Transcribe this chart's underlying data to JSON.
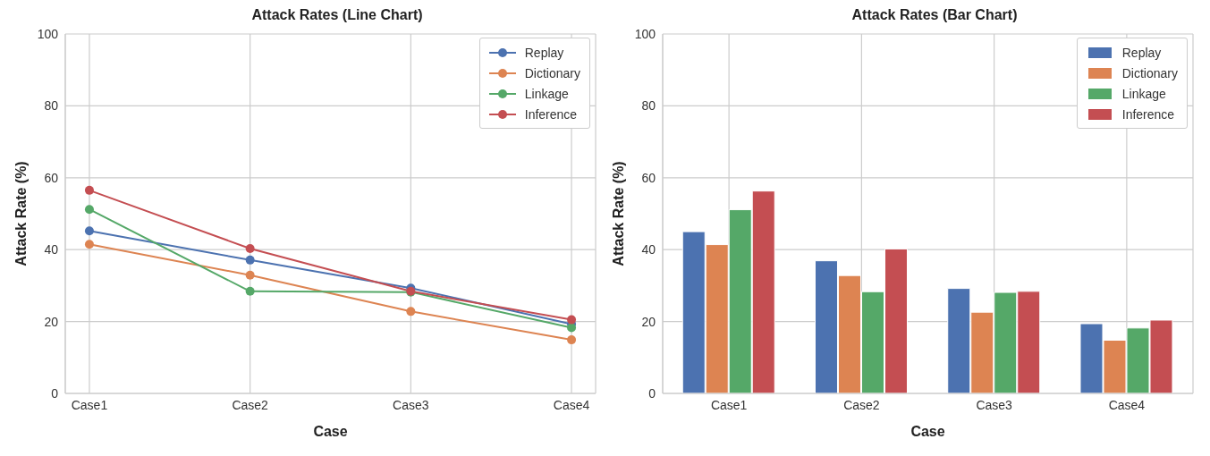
{
  "chart_data": [
    {
      "type": "line",
      "title": "Attack Rates (Line Chart)",
      "xlabel": "Case",
      "ylabel": "Attack Rate (%)",
      "categories": [
        "Case1",
        "Case2",
        "Case3",
        "Case4"
      ],
      "series": [
        {
          "name": "Replay",
          "color": "#4c72b0",
          "values": [
            45.2,
            37.1,
            29.3,
            19.3
          ]
        },
        {
          "name": "Dictionary",
          "color": "#dd8452",
          "values": [
            41.5,
            32.9,
            22.8,
            14.9
          ]
        },
        {
          "name": "Linkage",
          "color": "#55a868",
          "values": [
            51.2,
            28.4,
            28.2,
            18.3
          ]
        },
        {
          "name": "Inference",
          "color": "#c44e52",
          "values": [
            56.5,
            40.3,
            28.4,
            20.5
          ]
        }
      ],
      "ylim": [
        0,
        100
      ],
      "yticks": [
        0,
        20,
        40,
        60,
        80,
        100
      ],
      "grid": true,
      "legend": "top right",
      "marker": "circle"
    },
    {
      "type": "bar",
      "title": "Attack Rates (Bar Chart)",
      "xlabel": "Case",
      "ylabel": "Attack Rate (%)",
      "categories": [
        "Case1",
        "Case2",
        "Case3",
        "Case4"
      ],
      "series": [
        {
          "name": "Replay",
          "color": "#4c72b0",
          "values": [
            45.0,
            36.9,
            29.2,
            19.4
          ]
        },
        {
          "name": "Dictionary",
          "color": "#dd8452",
          "values": [
            41.4,
            32.8,
            22.6,
            14.8
          ]
        },
        {
          "name": "Linkage",
          "color": "#55a868",
          "values": [
            51.1,
            28.3,
            28.1,
            18.2
          ]
        },
        {
          "name": "Inference",
          "color": "#c44e52",
          "values": [
            56.3,
            40.2,
            28.4,
            20.4
          ]
        }
      ],
      "ylim": [
        0,
        100
      ],
      "yticks": [
        0,
        20,
        40,
        60,
        80,
        100
      ],
      "grid": true,
      "legend": "top right"
    }
  ]
}
